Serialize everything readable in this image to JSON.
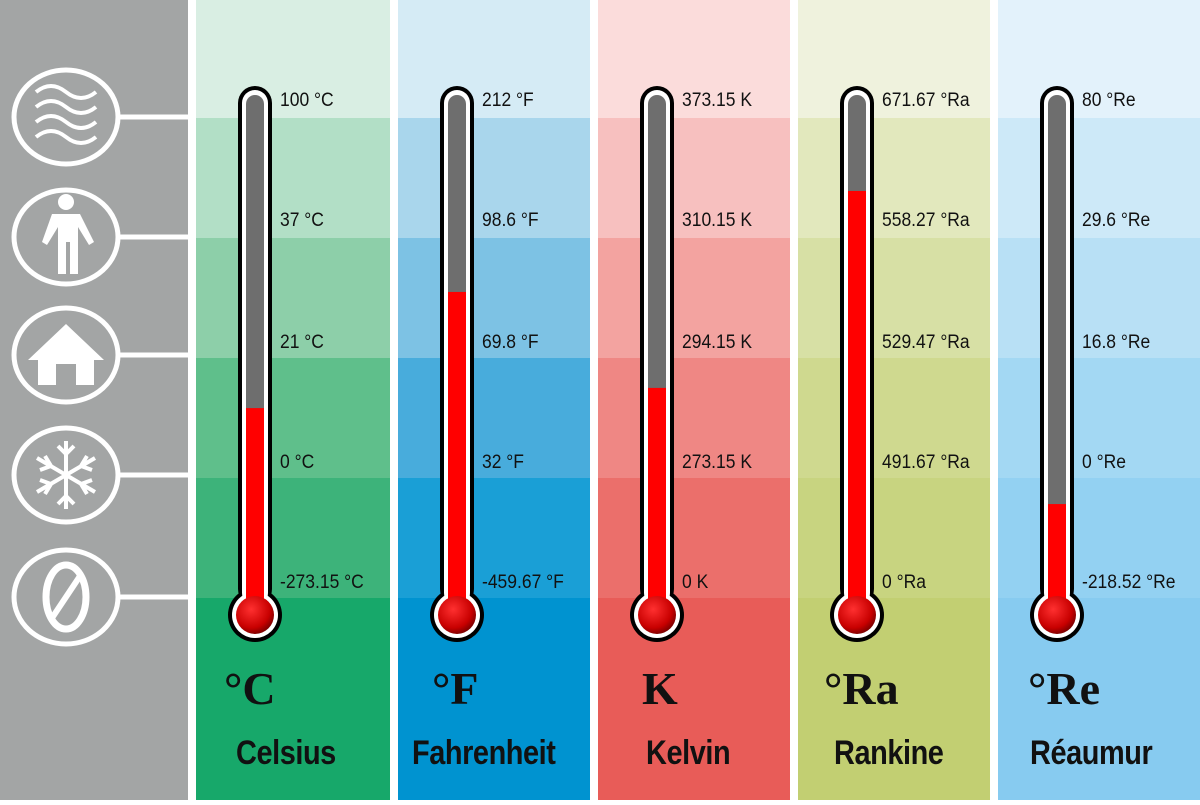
{
  "reference_points": [
    {
      "icon": "steam-waves-icon",
      "meaning": "boiling"
    },
    {
      "icon": "person-icon",
      "meaning": "body"
    },
    {
      "icon": "house-icon",
      "meaning": "room"
    },
    {
      "icon": "snowflake-icon",
      "meaning": "freezing"
    },
    {
      "icon": "zero-icon",
      "meaning": "absolute-zero"
    }
  ],
  "scales": [
    {
      "symbol": "°C",
      "name": "Celsius",
      "ticks": [
        "100 °C",
        "37 °C",
        "21 °C",
        "0 °C",
        "-273.15 °C"
      ],
      "fill": 0.38,
      "colors": [
        "#d9eee3",
        "#b2dfc6",
        "#8dcfa9",
        "#5fbf8b",
        "#3db37a",
        "#17a86a"
      ]
    },
    {
      "symbol": "°F",
      "name": "Fahrenheit",
      "ticks": [
        "212 °F",
        "98.6 °F",
        "69.8 °F",
        "32 °F",
        "-459.67 °F"
      ],
      "fill": 0.61,
      "colors": [
        "#d5ebf5",
        "#a9d6ec",
        "#7dc2e4",
        "#48acdc",
        "#1a9fd6",
        "#0093d0"
      ]
    },
    {
      "symbol": "K",
      "name": "Kelvin",
      "ticks": [
        "373.15 K",
        "310.15 K",
        "294.15 K",
        "273.15 K",
        "0 K"
      ],
      "fill": 0.42,
      "colors": [
        "#fbdcdb",
        "#f7c0bf",
        "#f3a3a0",
        "#ef8784",
        "#eb6f6b",
        "#e85c58"
      ]
    },
    {
      "symbol": "°Ra",
      "name": "Rankine",
      "ticks": [
        "671.67 °Ra",
        "558.27 °Ra",
        "529.47 °Ra",
        "491.67 °Ra",
        "0 °Ra"
      ],
      "fill": 0.81,
      "colors": [
        "#eff2dd",
        "#e2e8bd",
        "#d7e0a5",
        "#cfd98f",
        "#c8d480",
        "#c2cf72"
      ]
    },
    {
      "symbol": "°Re",
      "name": "Réaumur",
      "ticks": [
        "80 °Re",
        "29.6 °Re",
        "16.8 °Re",
        "0 °Re",
        "-218.52 °Re"
      ],
      "fill": 0.19,
      "colors": [
        "#e3f2fb",
        "#cde9f8",
        "#b8e0f5",
        "#a3d8f3",
        "#93d1f2",
        "#87cbf0"
      ]
    }
  ],
  "colors": {
    "panel": "#a3a5a5",
    "mercury": "#ff0000",
    "tube": "#6e6e6e"
  }
}
